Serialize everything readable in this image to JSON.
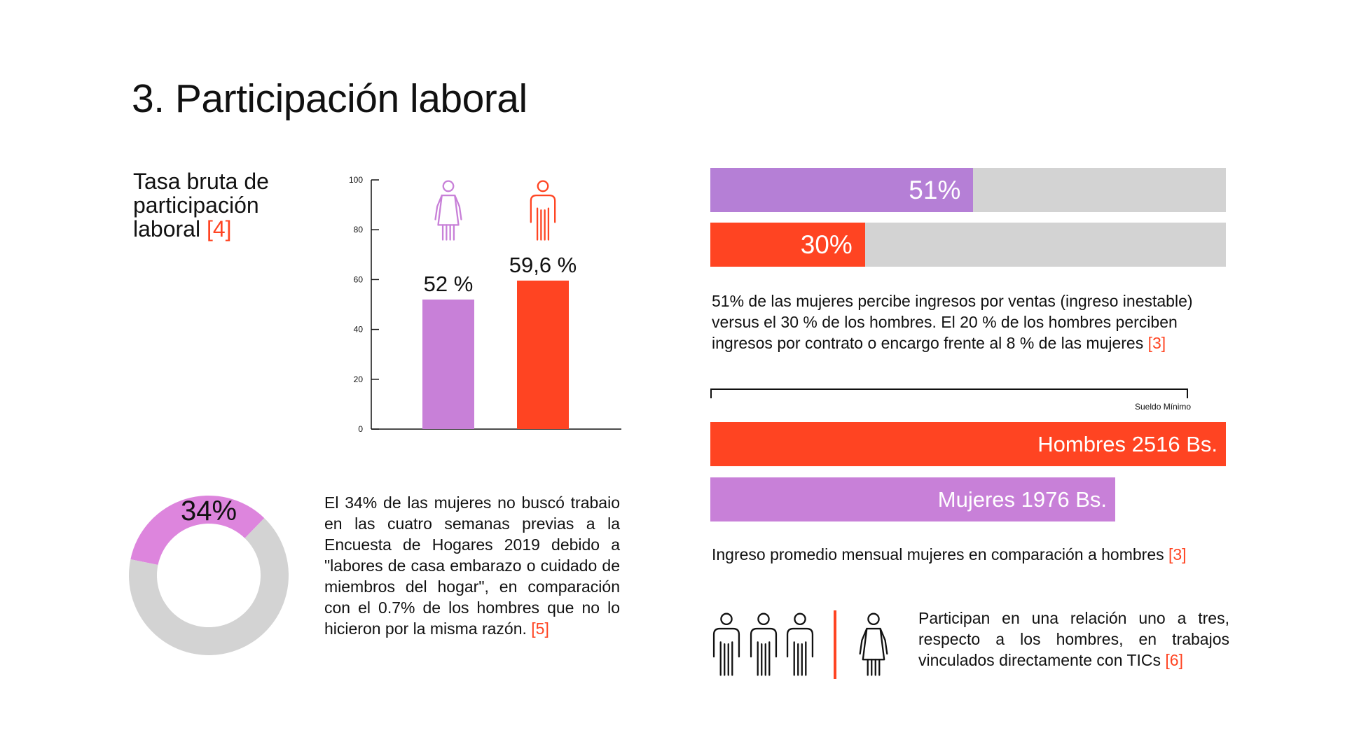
{
  "page": {
    "title": "3. Participación laboral"
  },
  "participation": {
    "title": "Tasa bruta de participación laboral",
    "ref": "[4]"
  },
  "chart_data": [
    {
      "type": "bar",
      "categories": [
        "Mujeres",
        "Hombres"
      ],
      "values": [
        52,
        59.6
      ],
      "value_labels": [
        "52 %",
        "59,6 %"
      ],
      "colors": [
        "#c880d8",
        "#ff4422"
      ],
      "icons": [
        "woman-icon",
        "man-icon"
      ],
      "yticks": [
        0,
        20,
        40,
        60,
        80,
        100
      ],
      "ylim": [
        0,
        100
      ]
    },
    {
      "type": "bar",
      "orientation": "horizontal",
      "categories": [
        "Mujeres",
        "Hombres"
      ],
      "values": [
        51,
        30
      ],
      "value_labels": [
        "51%",
        "30%"
      ],
      "colors": [
        "#b57fd6",
        "#ff4422"
      ],
      "xlim": [
        0,
        100
      ]
    },
    {
      "type": "bar",
      "orientation": "horizontal",
      "categories": [
        "Hombres",
        "Mujeres"
      ],
      "values": [
        2516,
        1976
      ],
      "value_labels": [
        "Hombres 2516 Bs.",
        "Mujeres 1976 Bs."
      ],
      "colors": [
        "#ff4422",
        "#c880d8"
      ],
      "reference_label": "Sueldo Mínimo"
    },
    {
      "type": "pie",
      "values": [
        34,
        66
      ],
      "center_label": "34%",
      "colors": [
        "#dd85dd",
        "#d3d3d3"
      ]
    }
  ],
  "sales_income": {
    "text": "51% de las mujeres percibe ingresos por ventas (ingreso inestable) versus el 30 % de los hombres. El 20 % de los hombres perciben ingresos por contrato o encargo frente al 8 % de las mujeres",
    "ref": "[3]"
  },
  "wage": {
    "caption": "Ingreso promedio mensual mujeres en comparación a hombres",
    "ref": "[3]"
  },
  "no_search": {
    "text": "El 34% de las mujeres no buscó trabaio en las cuatro semanas previas a la Encuesta de Hogares 2019 debido a \"labores de casa embarazo o cuidado de miembros del hogar\", en comparación con el 0.7% de los hombres que no lo hicieron por la misma razón.",
    "ref": "[5]"
  },
  "tics": {
    "text": "Participan en una relación uno a tres, respecto a los hombres, en trabajos vinculados directamente con TICs",
    "ref": "[6]",
    "icons": [
      "man-icon",
      "man-icon",
      "man-icon",
      "woman-icon"
    ],
    "divider_color": "#ff4422"
  }
}
